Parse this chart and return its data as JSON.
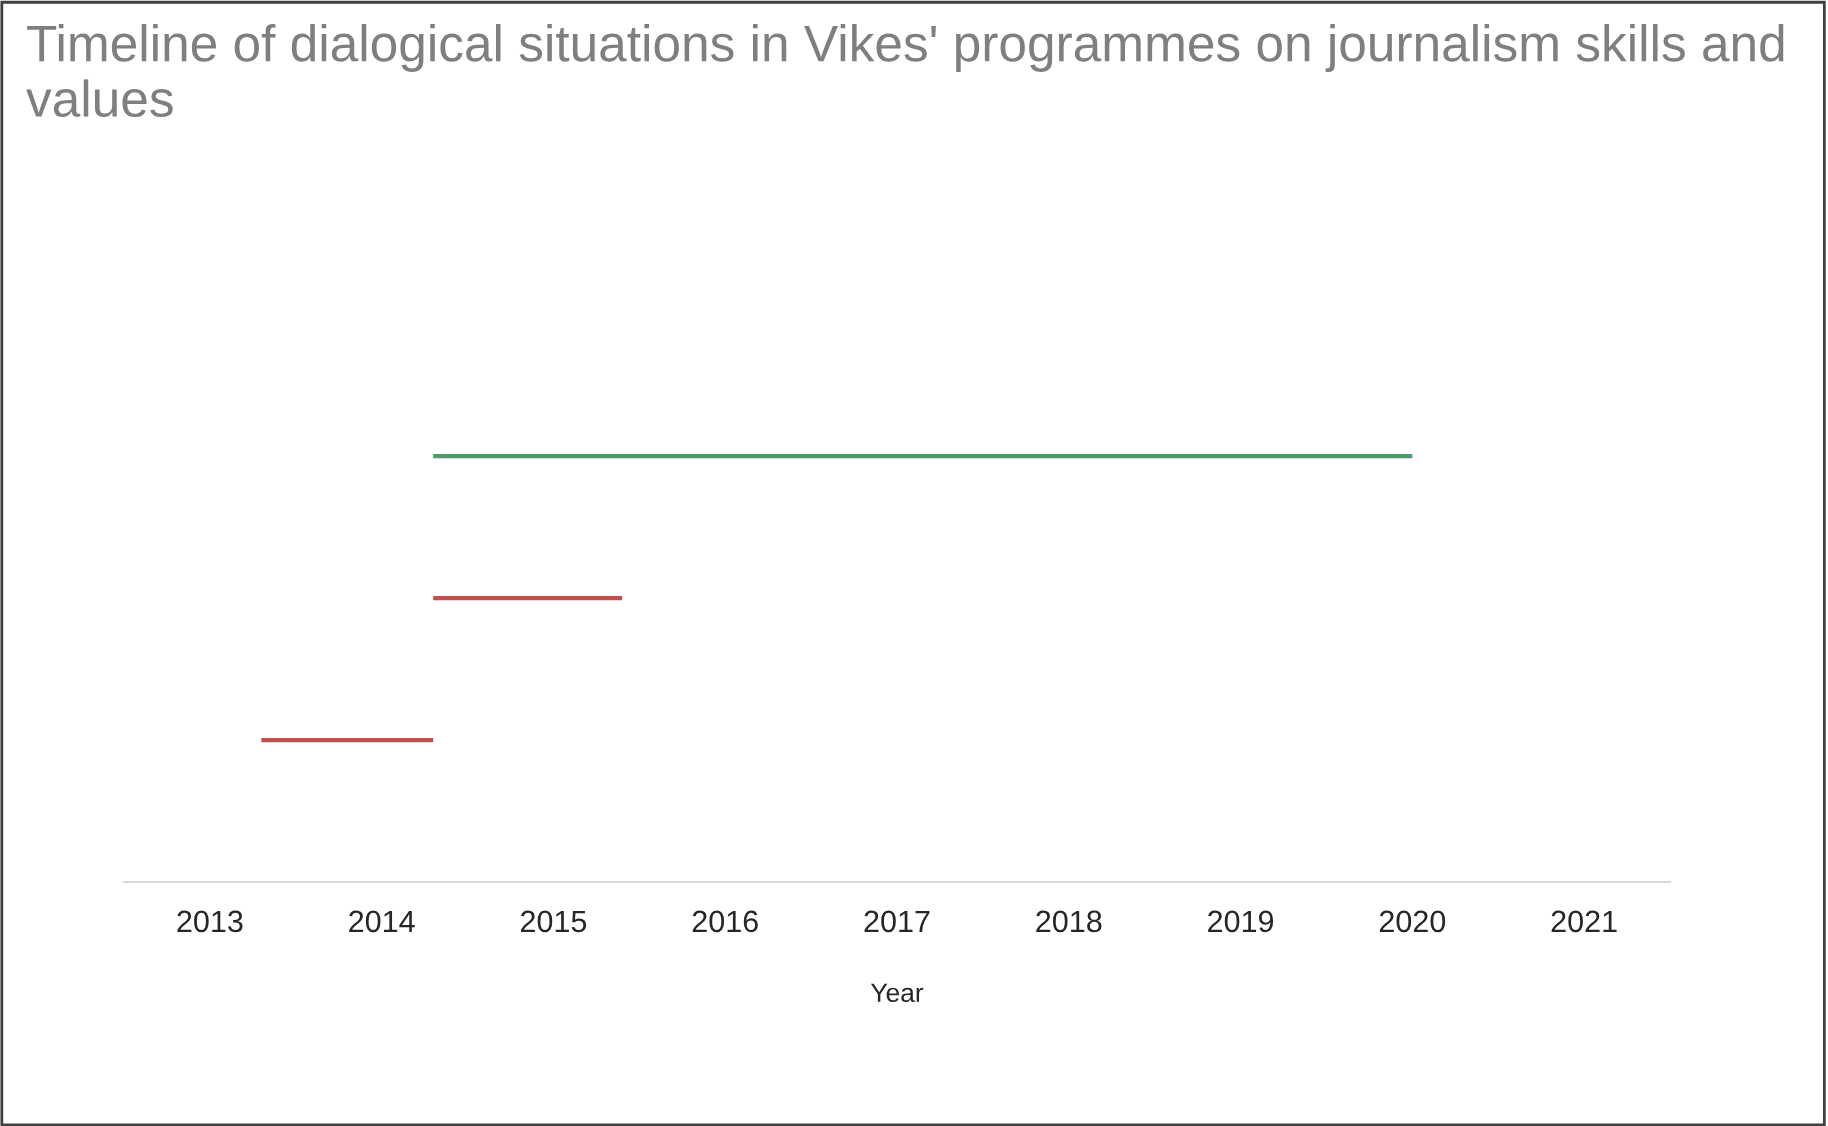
{
  "chart_data": {
    "type": "bar",
    "orientation": "horizontal",
    "title": "Timeline of dialogical situations in Vikes' programmes on journalism skills and values",
    "xlabel": "Year",
    "xlim": [
      2012.5,
      2021.5
    ],
    "xticks": [
      {
        "value": 2013,
        "label": "2013"
      },
      {
        "value": 2014,
        "label": "2014"
      },
      {
        "value": 2015,
        "label": "2015"
      },
      {
        "value": 2016,
        "label": "2016"
      },
      {
        "value": 2017,
        "label": "2017"
      },
      {
        "value": 2018,
        "label": "2018"
      },
      {
        "value": 2019,
        "label": "2019"
      },
      {
        "value": 2020,
        "label": "2020"
      },
      {
        "value": 2021,
        "label": "2021"
      }
    ],
    "grid": false,
    "legend": false,
    "categories": [
      null,
      null,
      null
    ],
    "base": [
      2014.3,
      2014.3,
      2013.3
    ],
    "values": [
      5.7,
      1.1,
      1.0
    ],
    "colors": [
      "#4e9a6a",
      "#c0504d",
      "#c0504d"
    ]
  }
}
